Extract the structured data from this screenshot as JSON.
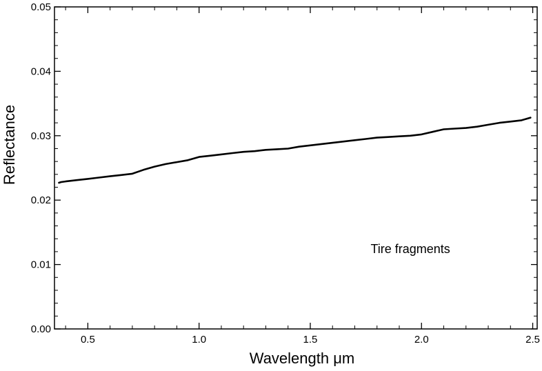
{
  "chart_data": {
    "type": "line",
    "title": "",
    "xlabel": "Wavelength μm",
    "ylabel": "Reflectance",
    "xlim": [
      0.35,
      2.52
    ],
    "ylim": [
      0.0,
      0.05
    ],
    "x_ticks": [
      0.5,
      1.0,
      1.5,
      2.0,
      2.5
    ],
    "x_tick_labels": [
      "0.5",
      "1.0",
      "1.5",
      "2.0",
      "2.5"
    ],
    "y_ticks": [
      0.0,
      0.01,
      0.02,
      0.03,
      0.04,
      0.05
    ],
    "y_tick_labels": [
      "0.00",
      "0.01",
      "0.02",
      "0.03",
      "0.04",
      "0.05"
    ],
    "grid": false,
    "legend": "none",
    "annotations": [
      {
        "text": "Tire fragments",
        "x": 1.95,
        "y": 0.0118
      }
    ],
    "series": [
      {
        "color": "#000000",
        "x": [
          0.37,
          0.38,
          0.4,
          0.45,
          0.5,
          0.55,
          0.6,
          0.65,
          0.7,
          0.75,
          0.8,
          0.85,
          0.9,
          0.95,
          1.0,
          1.05,
          1.1,
          1.15,
          1.2,
          1.25,
          1.3,
          1.35,
          1.4,
          1.45,
          1.5,
          1.55,
          1.6,
          1.65,
          1.7,
          1.75,
          1.8,
          1.85,
          1.9,
          1.95,
          2.0,
          2.05,
          2.1,
          2.15,
          2.2,
          2.25,
          2.3,
          2.35,
          2.4,
          2.45,
          2.49
        ],
        "y": [
          0.0227,
          0.0228,
          0.0229,
          0.0231,
          0.0233,
          0.0235,
          0.0237,
          0.0239,
          0.0241,
          0.0247,
          0.0252,
          0.0256,
          0.0259,
          0.0262,
          0.0267,
          0.0269,
          0.0271,
          0.0273,
          0.0275,
          0.0276,
          0.0278,
          0.0279,
          0.028,
          0.0283,
          0.0285,
          0.0287,
          0.0289,
          0.0291,
          0.0293,
          0.0295,
          0.0297,
          0.0298,
          0.0299,
          0.03,
          0.0302,
          0.0306,
          0.031,
          0.0311,
          0.0312,
          0.0314,
          0.0317,
          0.032,
          0.0322,
          0.0324,
          0.0328
        ]
      }
    ]
  }
}
